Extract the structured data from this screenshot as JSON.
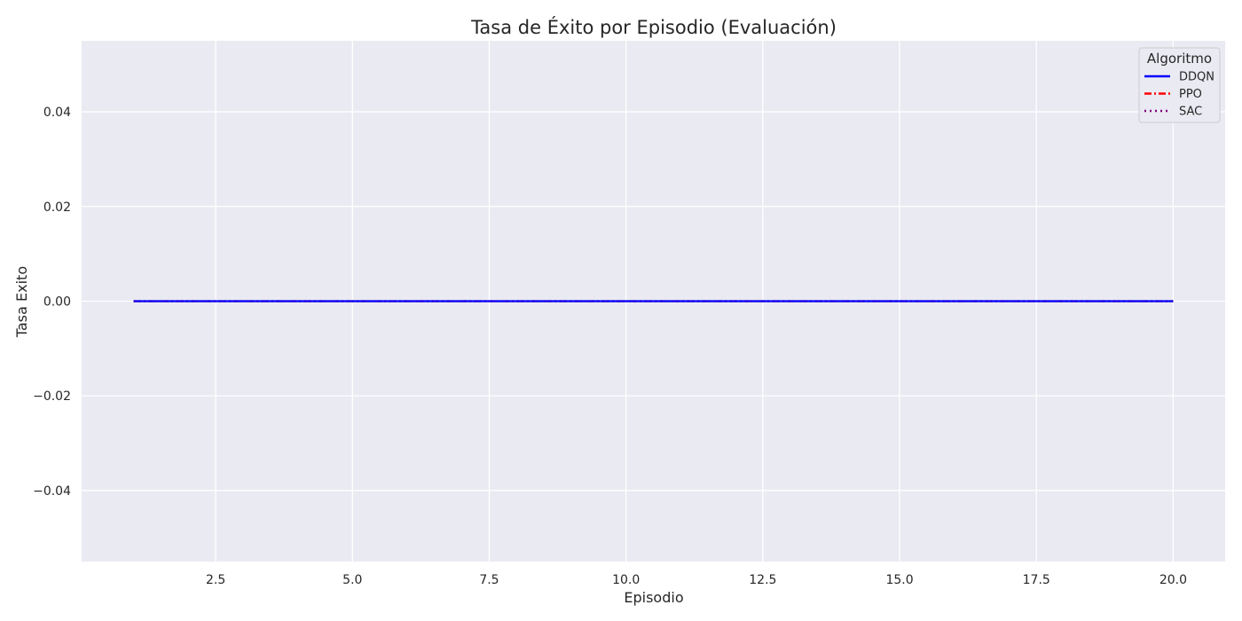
{
  "chart_data": {
    "type": "line",
    "title": "Tasa de Éxito por Episodio (Evaluación)",
    "xlabel": "Episodio",
    "ylabel": "Tasa Exito",
    "xlim": [
      0.05,
      20.95
    ],
    "ylim": [
      -0.055,
      0.055
    ],
    "xticks": [
      2.5,
      5.0,
      7.5,
      10.0,
      12.5,
      15.0,
      17.5,
      20.0
    ],
    "xtick_labels": [
      "2.5",
      "5.0",
      "7.5",
      "10.0",
      "12.5",
      "15.0",
      "17.5",
      "20.0"
    ],
    "yticks": [
      -0.04,
      -0.02,
      0.0,
      0.02,
      0.04
    ],
    "ytick_labels": [
      "−0.04",
      "−0.02",
      "0.00",
      "0.02",
      "0.04"
    ],
    "grid": true,
    "background": "#eaeaf2",
    "legend": {
      "title": "Algoritmo",
      "placement": "top-right"
    },
    "x": [
      1,
      2,
      3,
      4,
      5,
      6,
      7,
      8,
      9,
      10,
      11,
      12,
      13,
      14,
      15,
      16,
      17,
      18,
      19,
      20
    ],
    "series": [
      {
        "name": "DDQN",
        "color": "#0000ff",
        "style": "solid",
        "values": [
          0,
          0,
          0,
          0,
          0,
          0,
          0,
          0,
          0,
          0,
          0,
          0,
          0,
          0,
          0,
          0,
          0,
          0,
          0,
          0
        ]
      },
      {
        "name": "PPO",
        "color": "#ff0000",
        "style": "dashdot",
        "values": [
          0,
          0,
          0,
          0,
          0,
          0,
          0,
          0,
          0,
          0,
          0,
          0,
          0,
          0,
          0,
          0,
          0,
          0,
          0,
          0
        ]
      },
      {
        "name": "SAC",
        "color": "#800080",
        "style": "dotted",
        "values": [
          0,
          0,
          0,
          0,
          0,
          0,
          0,
          0,
          0,
          0,
          0,
          0,
          0,
          0,
          0,
          0,
          0,
          0,
          0,
          0
        ]
      }
    ]
  }
}
